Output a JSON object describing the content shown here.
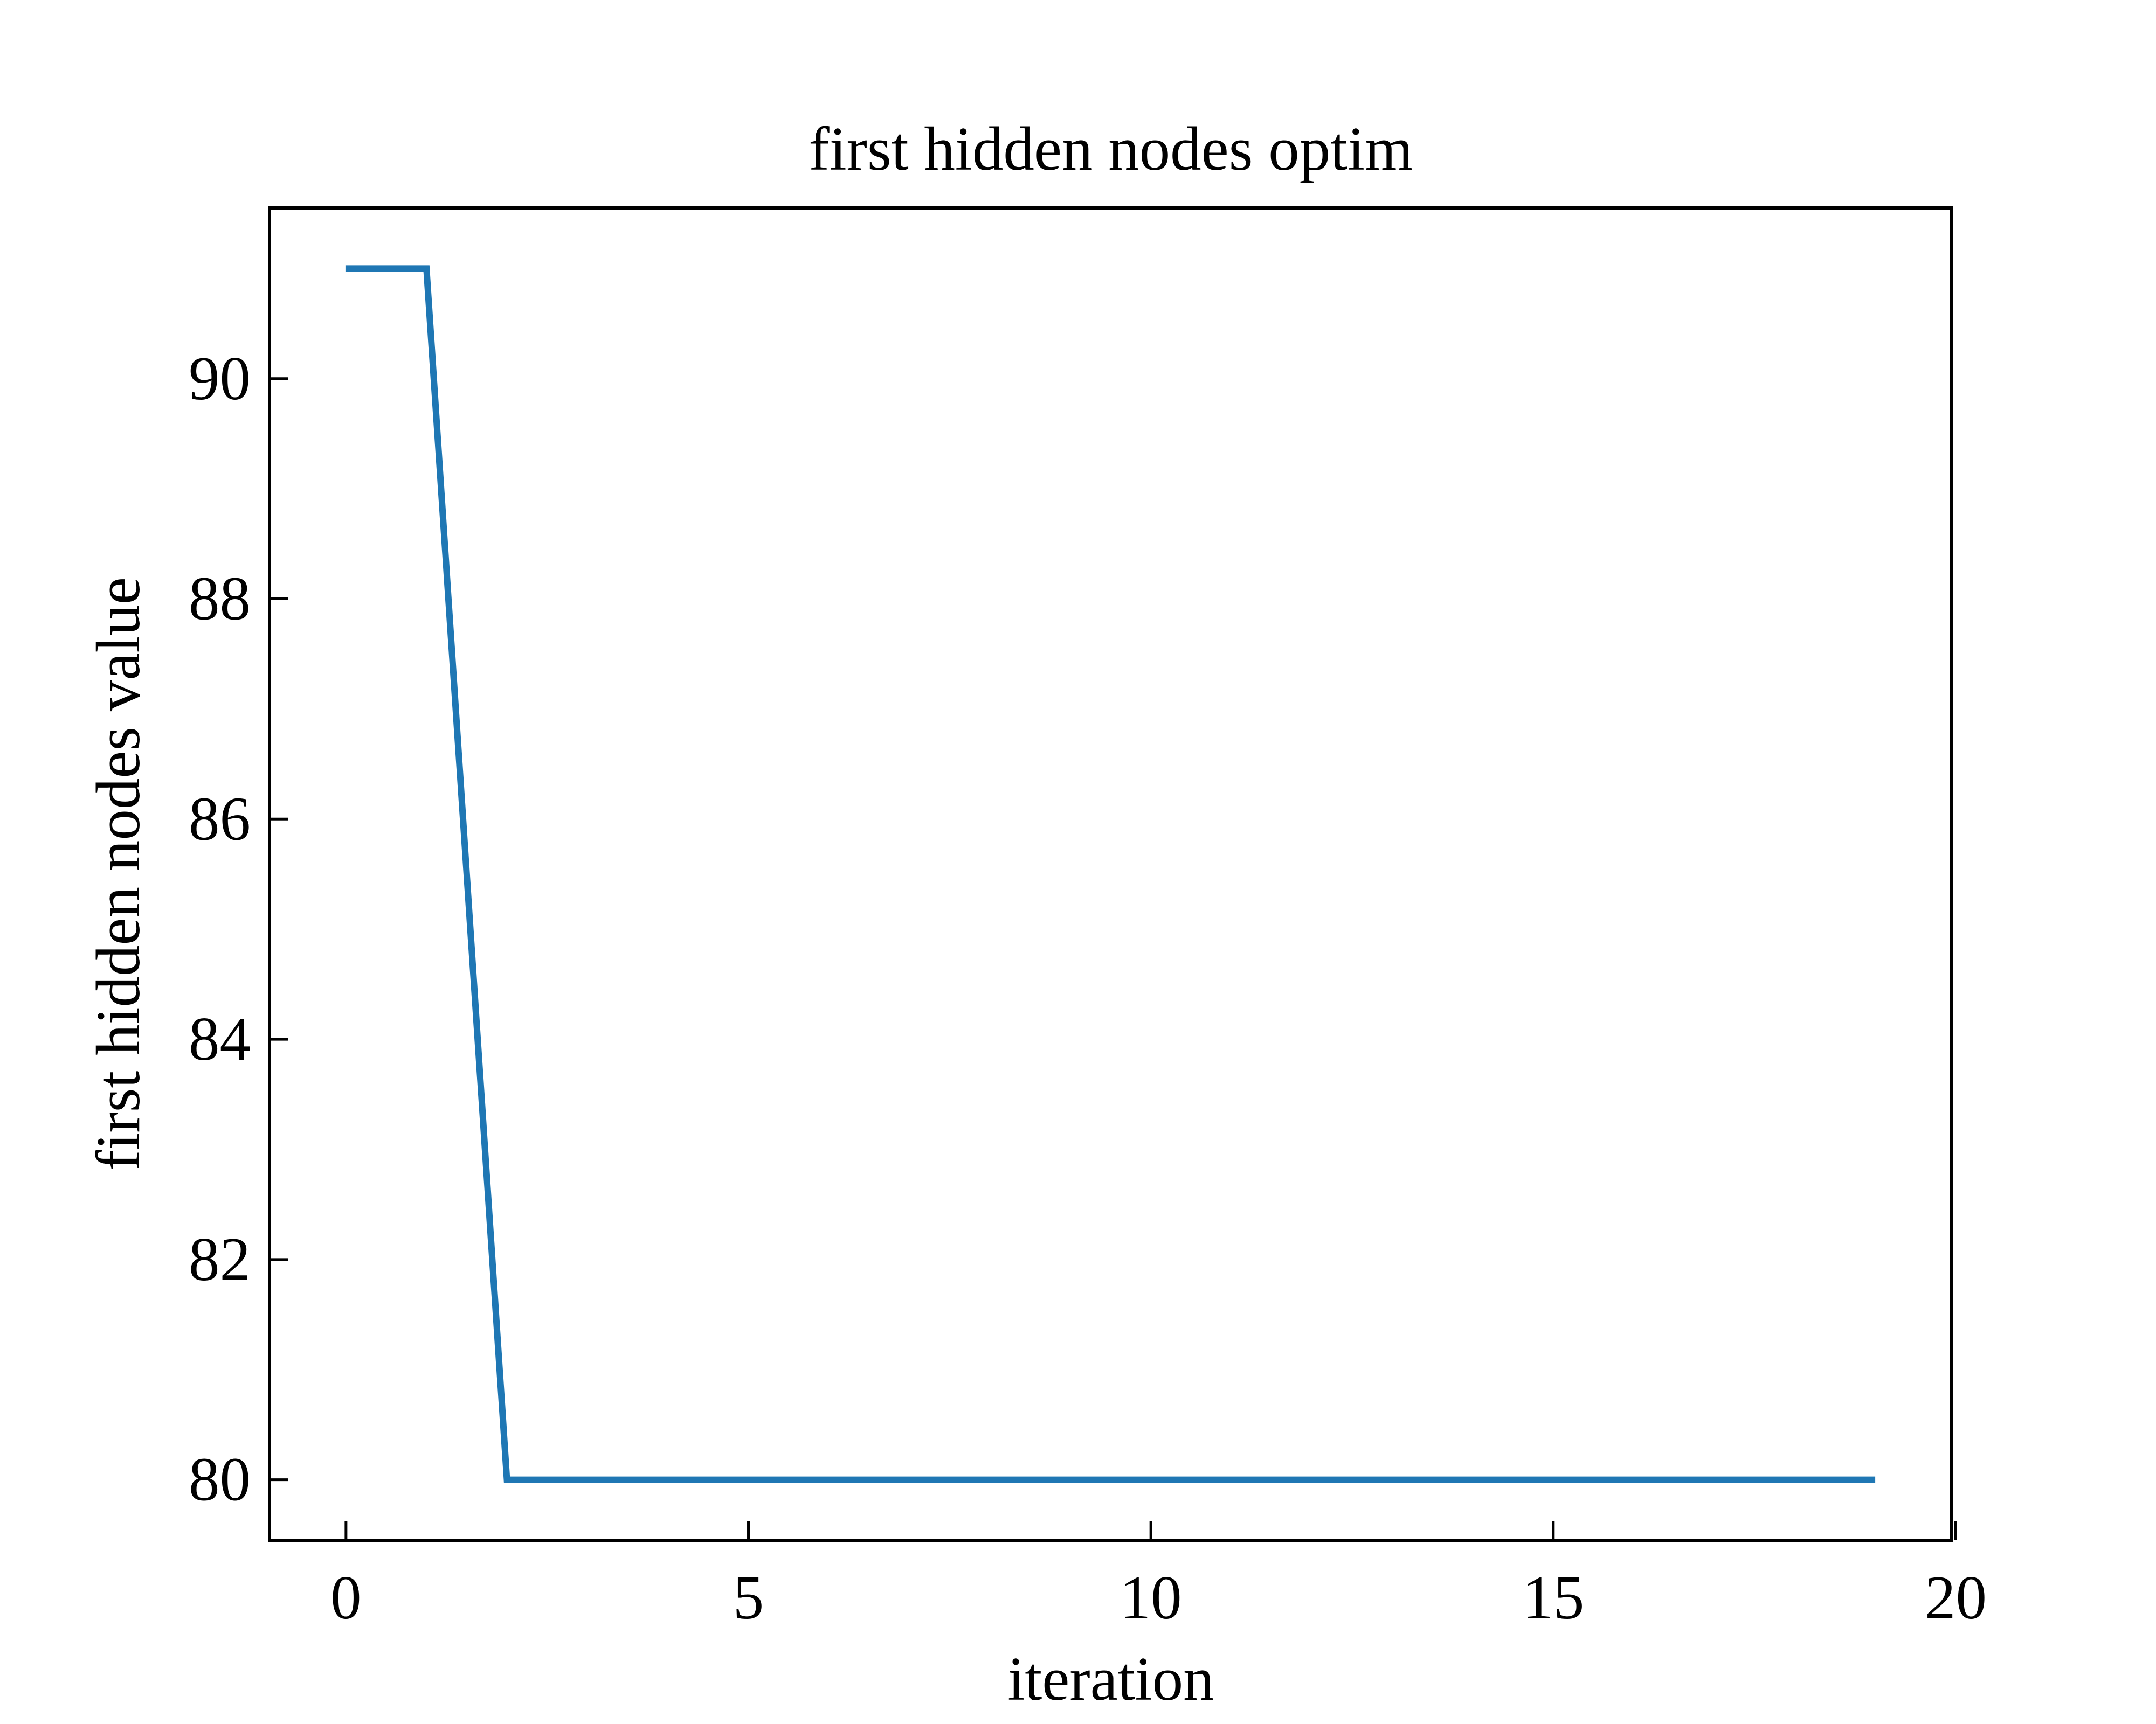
{
  "chart_data": {
    "type": "line",
    "title": "first hidden nodes optim",
    "xlabel": "iteration",
    "ylabel": "first hidden nodes value",
    "xlim": [
      -0.95,
      19.95
    ],
    "ylim": [
      79.45,
      91.55
    ],
    "xticks": [
      0,
      5,
      10,
      15,
      20
    ],
    "yticks": [
      80,
      82,
      84,
      86,
      88,
      90
    ],
    "tick_direction": "in",
    "grid": false,
    "line_color": "#1f77b4",
    "series": [
      {
        "x": [
          0,
          1,
          2,
          3,
          4,
          5,
          6,
          7,
          8,
          9,
          10,
          11,
          12,
          13,
          14,
          15,
          16,
          17,
          18,
          19
        ],
        "values": [
          91,
          91,
          80,
          80,
          80,
          80,
          80,
          80,
          80,
          80,
          80,
          80,
          80,
          80,
          80,
          80,
          80,
          80,
          80,
          80
        ]
      }
    ]
  }
}
